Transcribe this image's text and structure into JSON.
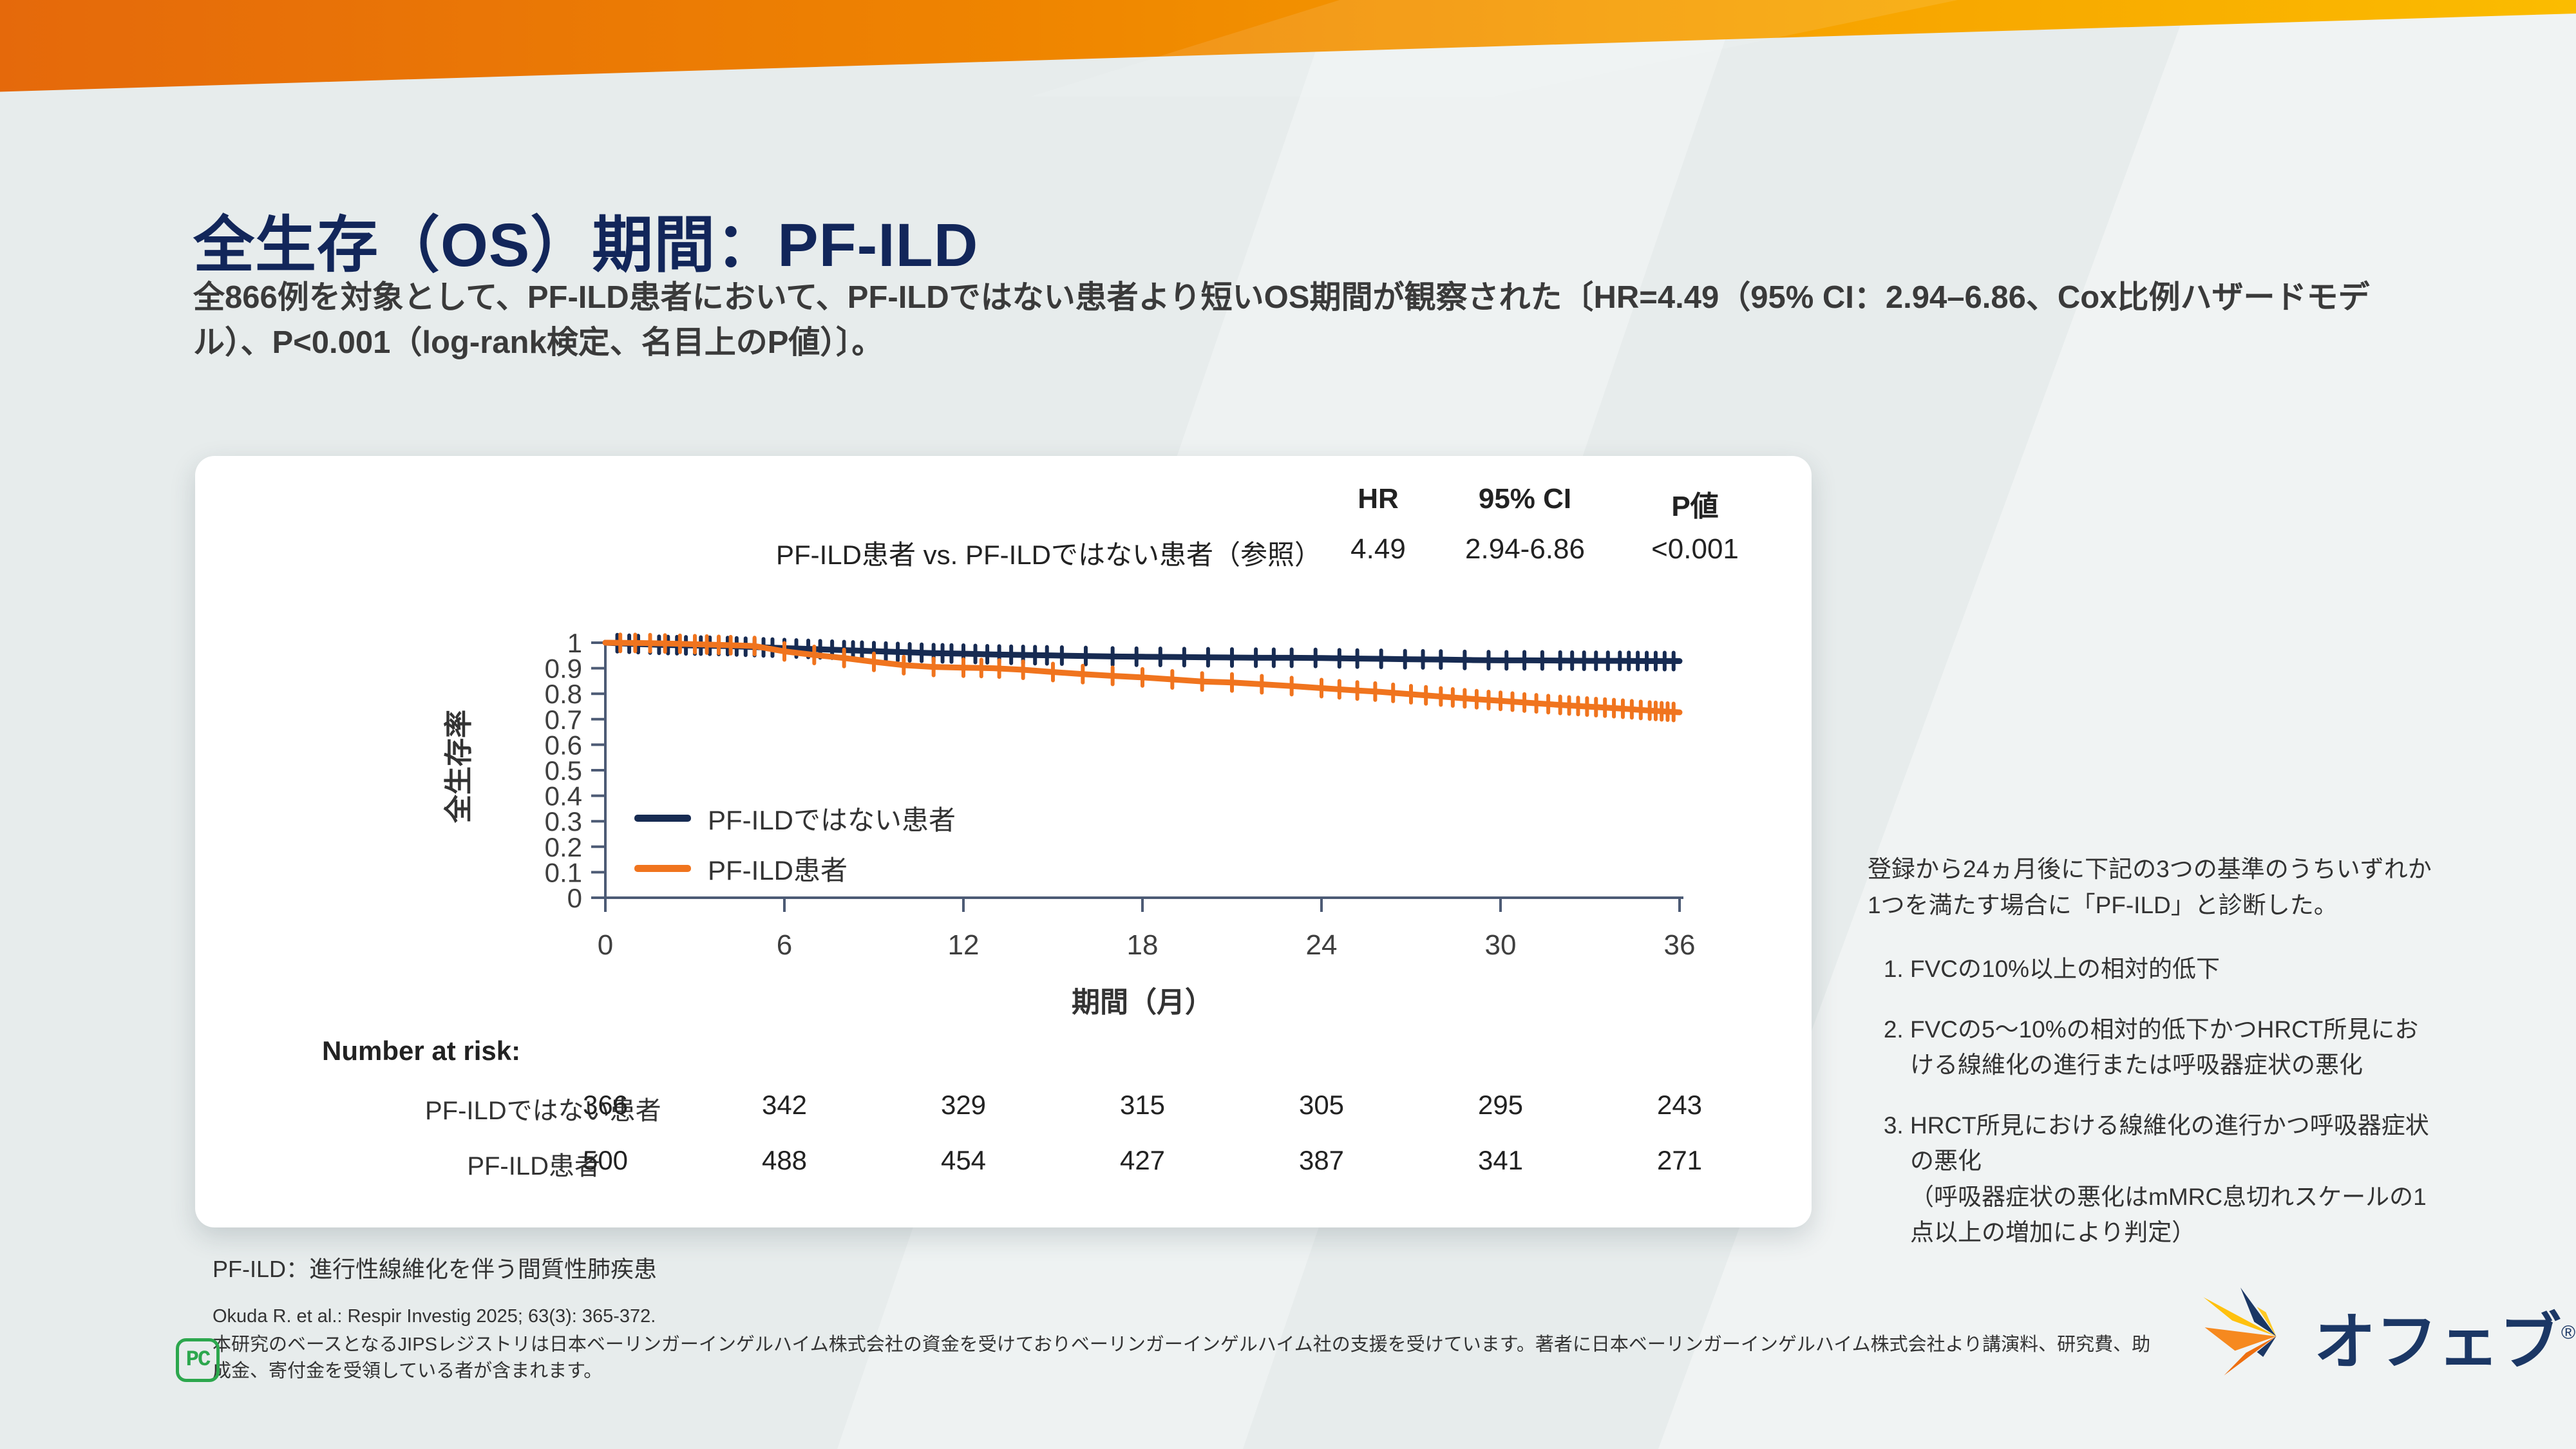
{
  "header": {
    "title": "全生存（OS）期間：PF-ILD",
    "subtitle": "全866例を対象として、PF-ILD患者において、PF-ILDではない患者より短いOS期間が観察された〔HR=4.49（95% CI：2.94–6.86、Cox比例ハザードモデル）、P<0.001（log-rank検定、名目上のP値）〕。"
  },
  "stats_table": {
    "headers": {
      "hr": "HR",
      "ci": "95% CI",
      "p": "P値"
    },
    "row_label": "PF-ILD患者 vs. PF-ILDではない患者（参照）",
    "values": {
      "hr": "4.49",
      "ci": "2.94-6.86",
      "p": "<0.001"
    }
  },
  "chart_data": {
    "type": "line",
    "title": "",
    "xlabel": "期間（月）",
    "ylabel": "全生存率",
    "xlim": [
      0,
      36
    ],
    "ylim": [
      0,
      1
    ],
    "xticks": [
      0,
      6,
      12,
      18,
      24,
      30,
      36
    ],
    "yticks": [
      0,
      0.1,
      0.2,
      0.3,
      0.4,
      0.5,
      0.6,
      0.7,
      0.8,
      0.9,
      1
    ],
    "grid": false,
    "legend_position": "inside-left",
    "axis_color": "#4D5B75",
    "series": [
      {
        "name": "PF-ILDではない患者",
        "color": "#172B52",
        "x": [
          0,
          1,
          2,
          3,
          4,
          5,
          6,
          7,
          8,
          9,
          10,
          11,
          12,
          13,
          14,
          15,
          16,
          17,
          18,
          19,
          20,
          21,
          22,
          23,
          24,
          25,
          26,
          27,
          28,
          29,
          30,
          31,
          32,
          33,
          34,
          35,
          36
        ],
        "y": [
          1.0,
          0.995,
          0.991,
          0.989,
          0.987,
          0.983,
          0.979,
          0.975,
          0.971,
          0.967,
          0.963,
          0.959,
          0.957,
          0.954,
          0.952,
          0.95,
          0.948,
          0.946,
          0.945,
          0.944,
          0.943,
          0.942,
          0.941,
          0.941,
          0.94,
          0.938,
          0.937,
          0.935,
          0.934,
          0.932,
          0.931,
          0.931,
          0.93,
          0.929,
          0.929,
          0.928,
          0.928
        ],
        "censor_x": [
          0.4,
          0.8,
          1.1,
          1.5,
          1.8,
          2.1,
          2.4,
          2.7,
          3.0,
          3.2,
          3.5,
          3.8,
          4.1,
          4.4,
          4.7,
          5.0,
          5.3,
          5.6,
          6.0,
          6.4,
          6.8,
          7.2,
          7.6,
          8.0,
          8.3,
          8.6,
          9.0,
          9.4,
          9.8,
          10.2,
          10.6,
          11.0,
          11.3,
          11.6,
          12.0,
          12.4,
          12.8,
          13.2,
          13.6,
          14.0,
          14.4,
          14.8,
          15.3,
          16.1,
          17.0,
          17.8,
          18.6,
          19.4,
          20.2,
          21.0,
          21.8,
          22.4,
          23.0,
          23.8,
          24.6,
          25.2,
          26.0,
          26.8,
          27.4,
          28.0,
          28.8,
          29.6,
          30.2,
          30.8,
          31.4,
          32.0,
          32.4,
          32.8,
          33.2,
          33.6,
          34.0,
          34.3,
          34.6,
          34.9,
          35.2,
          35.5,
          35.8
        ]
      },
      {
        "name": "PF-ILD患者",
        "color": "#F0741E",
        "x": [
          0,
          1,
          2,
          3,
          4,
          5,
          6,
          7,
          8,
          9,
          10,
          11,
          12,
          13,
          14,
          15,
          16,
          17,
          18,
          19,
          20,
          21,
          22,
          23,
          24,
          25,
          26,
          27,
          28,
          29,
          30,
          31,
          32,
          33,
          34,
          35,
          36
        ],
        "y": [
          1.0,
          0.999,
          0.997,
          0.994,
          0.991,
          0.987,
          0.966,
          0.952,
          0.94,
          0.925,
          0.912,
          0.905,
          0.902,
          0.9,
          0.894,
          0.885,
          0.877,
          0.87,
          0.864,
          0.856,
          0.848,
          0.844,
          0.837,
          0.83,
          0.822,
          0.814,
          0.807,
          0.798,
          0.789,
          0.78,
          0.772,
          0.764,
          0.756,
          0.749,
          0.742,
          0.734,
          0.727
        ],
        "censor_x": [
          0.5,
          1.0,
          1.5,
          2.0,
          2.5,
          3.0,
          3.4,
          3.8,
          4.2,
          5.0,
          6.0,
          7.0,
          8.0,
          9.0,
          10.0,
          11.0,
          12.0,
          12.6,
          13.2,
          14.0,
          15.0,
          16.0,
          17.0,
          18.0,
          19.0,
          20.0,
          21.0,
          22.0,
          23.0,
          24.0,
          24.6,
          25.2,
          25.8,
          26.4,
          27.0,
          27.5,
          28.0,
          28.4,
          28.8,
          29.2,
          29.6,
          30.0,
          30.4,
          30.8,
          31.2,
          31.6,
          32.0,
          32.3,
          32.6,
          32.9,
          33.2,
          33.5,
          33.8,
          34.1,
          34.4,
          34.7,
          35.0,
          35.2,
          35.4,
          35.6,
          35.8
        ]
      }
    ]
  },
  "number_at_risk": {
    "title": "Number at risk:",
    "rows": [
      {
        "label": "PF-ILDではない患者",
        "values": [
          366,
          342,
          329,
          315,
          305,
          295,
          243
        ]
      },
      {
        "label": "PF-ILD患者",
        "values": [
          500,
          488,
          454,
          427,
          387,
          341,
          271
        ]
      }
    ]
  },
  "sidebar": {
    "intro": "登録から24ヵ月後に下記の3つの基準のうちいずれか1つを満たす場合に「PF-ILD」と診断した。",
    "items": [
      "FVCの10%以上の相対的低下",
      "FVCの5～10%の相対的低下かつHRCT所見における線維化の進行または呼吸器症状の悪化",
      "HRCT所見における線維化の進行かつ呼吸器症状の悪化\n（呼吸器症状の悪化はmMRC息切れスケールの1点以上の増加により判定）"
    ]
  },
  "footer": {
    "abbrev": "PF-ILD：進行性線維化を伴う間質性肺疾患",
    "citation": "Okuda R. et al.: Respir Investig 2025; 63(3): 365-372.",
    "disclosure": "本研究のベースとなるJIPSレジストリは日本ベーリンガーインゲルハイム株式会社の資金を受けておりベーリンガーインゲルハイム社の支援を受けています。著者に日本ベーリンガーインゲルハイム株式会社より講演料、研究費、助成金、寄付金を受領している者が含まれます。",
    "pc_icon_text": "PC"
  },
  "logo": {
    "text": "オフェブ",
    "registered": "®"
  },
  "colors": {
    "navy": "#172B52",
    "orange": "#F0741E",
    "title_navy": "#12265A",
    "band_start": "#E5690B",
    "band_end": "#FBBC00",
    "green": "#2CA74D",
    "background": "#E7ECEC",
    "card": "#FFFFFF"
  }
}
